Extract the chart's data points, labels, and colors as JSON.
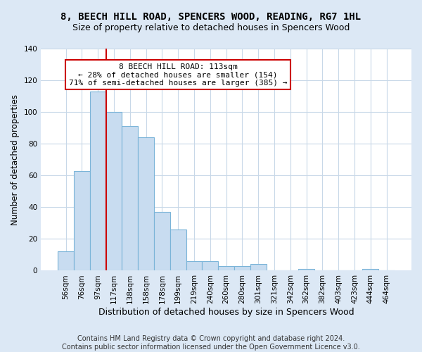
{
  "title": "8, BEECH HILL ROAD, SPENCERS WOOD, READING, RG7 1HL",
  "subtitle": "Size of property relative to detached houses in Spencers Wood",
  "xlabel": "Distribution of detached houses by size in Spencers Wood",
  "ylabel": "Number of detached properties",
  "footer_line1": "Contains HM Land Registry data © Crown copyright and database right 2024.",
  "footer_line2": "Contains public sector information licensed under the Open Government Licence v3.0.",
  "bin_labels": [
    "56sqm",
    "76sqm",
    "97sqm",
    "117sqm",
    "138sqm",
    "158sqm",
    "178sqm",
    "199sqm",
    "219sqm",
    "240sqm",
    "260sqm",
    "280sqm",
    "301sqm",
    "321sqm",
    "342sqm",
    "362sqm",
    "382sqm",
    "403sqm",
    "423sqm",
    "444sqm",
    "464sqm"
  ],
  "bar_values": [
    12,
    63,
    113,
    100,
    91,
    84,
    37,
    26,
    6,
    6,
    3,
    3,
    4,
    0,
    0,
    1,
    0,
    0,
    0,
    1,
    0
  ],
  "bar_color": "#c8dcf0",
  "bar_edge_color": "#7ab4d8",
  "annotation_text": "8 BEECH HILL ROAD: 113sqm\n← 28% of detached houses are smaller (154)\n71% of semi-detached houses are larger (385) →",
  "annotation_box_color": "#ffffff",
  "annotation_box_edge": "#cc0000",
  "ref_line_color": "#cc0000",
  "ylim": [
    0,
    140
  ],
  "yticks": [
    0,
    20,
    40,
    60,
    80,
    100,
    120,
    140
  ],
  "fig_bg_color": "#dce8f5",
  "plot_bg_color": "#ffffff",
  "title_fontsize": 10,
  "subtitle_fontsize": 9,
  "xlabel_fontsize": 9,
  "ylabel_fontsize": 8.5,
  "tick_fontsize": 7.5,
  "footer_fontsize": 7,
  "annotation_fontsize": 8,
  "grid_color": "#c8d8e8"
}
